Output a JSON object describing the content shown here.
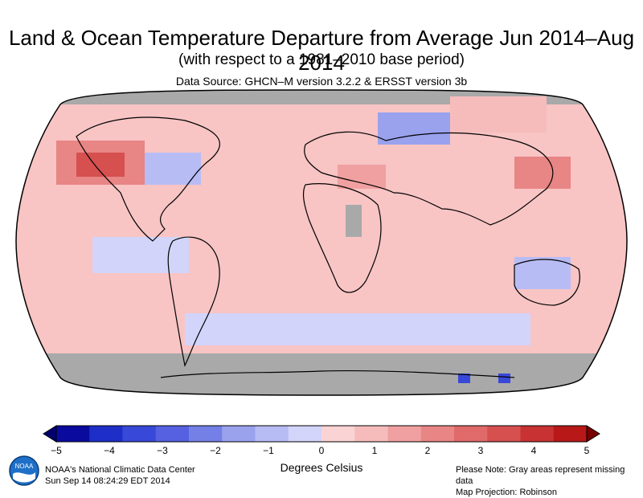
{
  "header": {
    "title": "Land & Ocean Temperature Departure from Average Jun 2014–Aug 2014",
    "subtitle": "(with respect to a 1981–2010 base period)",
    "source": "Data Source: GHCN–M version 3.2.2 & ERSST version 3b"
  },
  "legend": {
    "units": "Degrees Celsius",
    "ticks": [
      "−5",
      "−4",
      "−3",
      "−2",
      "−1",
      "0",
      "1",
      "2",
      "3",
      "4",
      "5"
    ],
    "colors": [
      "#0a0a9e",
      "#1e2fc8",
      "#3848d8",
      "#5561e0",
      "#7480e6",
      "#9aa2ee",
      "#b8bcf4",
      "#d2d4fa",
      "#fad4d4",
      "#f6bcbc",
      "#f0a0a0",
      "#e88585",
      "#e06a6a",
      "#d65050",
      "#c83232",
      "#b81818"
    ],
    "min_color": "#00006e",
    "max_color": "#780000"
  },
  "footer": {
    "org": "NOAA's National Climatic Data Center",
    "timestamp": "Sun Sep 14 08:24:29 EDT 2014",
    "note": "Please Note: Gray areas represent missing data",
    "projection": "Map Projection: Robinson",
    "logo_text": "NOAA"
  },
  "map": {
    "missing_color": "#a9a9a9",
    "ocean_base_color": "#f8c4c4",
    "projection": "Robinson"
  }
}
